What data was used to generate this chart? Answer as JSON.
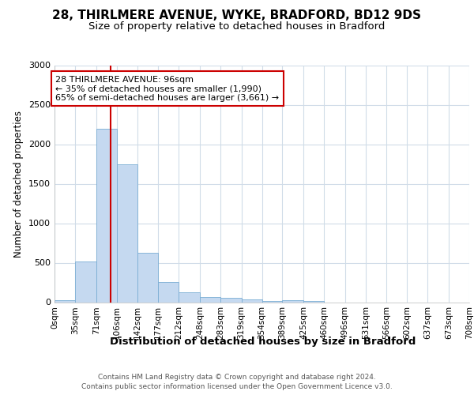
{
  "title1": "28, THIRLMERE AVENUE, WYKE, BRADFORD, BD12 9DS",
  "title2": "Size of property relative to detached houses in Bradford",
  "xlabel": "Distribution of detached houses by size in Bradford",
  "ylabel": "Number of detached properties",
  "bins": [
    0,
    35,
    71,
    106,
    142,
    177,
    212,
    248,
    283,
    319,
    354,
    389,
    425,
    460,
    496,
    531,
    566,
    602,
    637,
    673,
    708
  ],
  "counts": [
    25,
    520,
    2200,
    1750,
    630,
    260,
    130,
    70,
    60,
    35,
    20,
    25,
    15,
    0,
    0,
    0,
    0,
    0,
    0,
    0
  ],
  "bar_color": "#c5d9f0",
  "bar_edge_color": "#7aadd4",
  "vline_x": 96,
  "vline_color": "#cc0000",
  "annotation_text": "28 THIRLMERE AVENUE: 96sqm\n← 35% of detached houses are smaller (1,990)\n65% of semi-detached houses are larger (3,661) →",
  "annotation_box_color": "#cc0000",
  "ylim": [
    0,
    3000
  ],
  "fig_bg_color": "#ffffff",
  "plot_bg_color": "#ffffff",
  "grid_color": "#d0dce8",
  "tick_labels": [
    "0sqm",
    "35sqm",
    "71sqm",
    "106sqm",
    "142sqm",
    "177sqm",
    "212sqm",
    "248sqm",
    "283sqm",
    "319sqm",
    "354sqm",
    "389sqm",
    "425sqm",
    "460sqm",
    "496sqm",
    "531sqm",
    "566sqm",
    "602sqm",
    "637sqm",
    "673sqm",
    "708sqm"
  ],
  "footer": "Contains HM Land Registry data © Crown copyright and database right 2024.\nContains public sector information licensed under the Open Government Licence v3.0.",
  "title1_fontsize": 11,
  "title2_fontsize": 9.5,
  "xlabel_fontsize": 9.5,
  "ylabel_fontsize": 8.5,
  "tick_fontsize": 7.5,
  "annotation_fontsize": 8,
  "footer_fontsize": 6.5
}
